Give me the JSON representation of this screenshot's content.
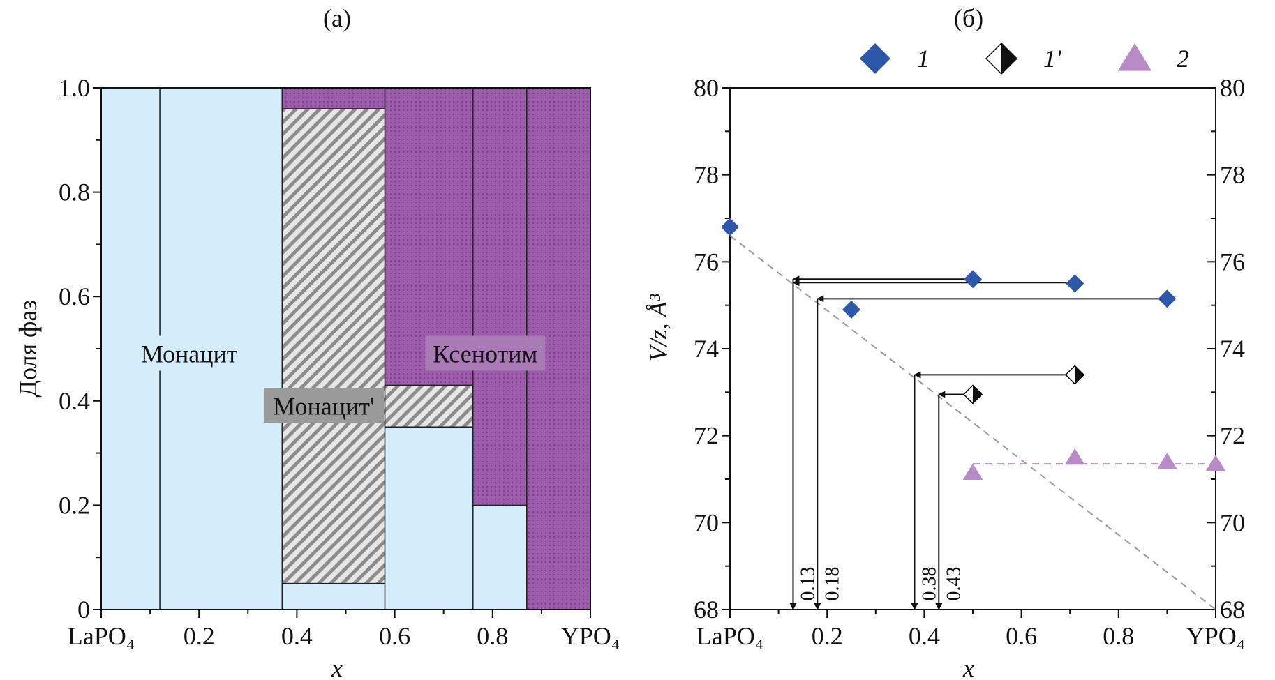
{
  "colors": {
    "monazite": "#d5ecfb",
    "monazite_prime_hatch": "#8c8c8c",
    "xenotime": "#9c5dab",
    "xenotime_label_bg": "#a97ab5",
    "monazite_prime_label_bg": "#9a9a9a",
    "series1": "#2d57a8",
    "series2": "#b98bc6",
    "dashed": "#9a9a9a"
  },
  "chart_data": [
    {
      "panel": "(a)",
      "type": "bar",
      "stacked": true,
      "xlabel": "x",
      "ylabel": "Доля фаз",
      "xlim": [
        0,
        1
      ],
      "ylim": [
        0,
        1
      ],
      "xticks": [
        {
          "value": 0,
          "label": "LaPO₄"
        },
        {
          "value": 0.2,
          "label": "0.2"
        },
        {
          "value": 0.4,
          "label": "0.4"
        },
        {
          "value": 0.6,
          "label": "0.6"
        },
        {
          "value": 0.8,
          "label": "0.8"
        },
        {
          "value": 1,
          "label": "YPO₄"
        }
      ],
      "yticks": [
        {
          "value": 0,
          "label": "0"
        },
        {
          "value": 0.2,
          "label": "0.2"
        },
        {
          "value": 0.4,
          "label": "0.4"
        },
        {
          "value": 0.6,
          "label": "0.6"
        },
        {
          "value": 0.8,
          "label": "0.8"
        },
        {
          "value": 1,
          "label": "1.0"
        }
      ],
      "columns": [
        {
          "x": [
            0,
            0.12
          ],
          "segments": [
            {
              "phase": "monazite",
              "from": 0,
              "to": 1
            }
          ]
        },
        {
          "x": [
            0.12,
            0.37
          ],
          "segments": [
            {
              "phase": "monazite",
              "from": 0,
              "to": 1
            }
          ]
        },
        {
          "x": [
            0.37,
            0.58
          ],
          "segments": [
            {
              "phase": "monazite",
              "from": 0,
              "to": 0.05
            },
            {
              "phase": "monazite_prime",
              "from": 0.05,
              "to": 0.96
            },
            {
              "phase": "xenotime",
              "from": 0.96,
              "to": 1
            }
          ]
        },
        {
          "x": [
            0.58,
            0.76
          ],
          "segments": [
            {
              "phase": "monazite",
              "from": 0,
              "to": 0.35
            },
            {
              "phase": "monazite_prime",
              "from": 0.35,
              "to": 0.43
            },
            {
              "phase": "xenotime",
              "from": 0.43,
              "to": 1
            }
          ]
        },
        {
          "x": [
            0.76,
            0.87
          ],
          "segments": [
            {
              "phase": "monazite",
              "from": 0,
              "to": 0.2
            },
            {
              "phase": "xenotime",
              "from": 0.2,
              "to": 1
            }
          ]
        },
        {
          "x": [
            0.87,
            1
          ],
          "segments": [
            {
              "phase": "xenotime",
              "from": 0,
              "to": 1
            }
          ]
        }
      ],
      "labels": [
        {
          "phase": "monazite",
          "text": "Монацит",
          "x": 0.18,
          "y": 0.49
        },
        {
          "phase": "monazite_prime",
          "text": "Монацит'",
          "x": 0.455,
          "y": 0.39
        },
        {
          "phase": "xenotime",
          "text": "Ксенотим",
          "x": 0.785,
          "y": 0.49
        }
      ]
    },
    {
      "panel": "(б)",
      "type": "scatter",
      "xlabel": "x",
      "ylabel": "V/z, Å³",
      "xlim": [
        0,
        1
      ],
      "ylim": [
        68,
        80
      ],
      "xticks": [
        {
          "value": 0,
          "label": "LaPO₄"
        },
        {
          "value": 0.2,
          "label": "0.2"
        },
        {
          "value": 0.4,
          "label": "0.4"
        },
        {
          "value": 0.6,
          "label": "0.6"
        },
        {
          "value": 0.8,
          "label": "0.8"
        },
        {
          "value": 1,
          "label": "YPO₄"
        }
      ],
      "yticks": [
        68,
        70,
        72,
        74,
        76,
        78,
        80
      ],
      "legend_position": "top",
      "series": [
        {
          "name": "1",
          "marker": "diamond",
          "x": [
            0.0,
            0.25,
            0.5,
            0.71,
            0.9
          ],
          "y": [
            76.8,
            74.9,
            75.6,
            75.5,
            75.15
          ]
        },
        {
          "name": "1'",
          "marker": "half-diamond",
          "x": [
            0.71,
            0.5
          ],
          "y": [
            73.4,
            72.95
          ]
        },
        {
          "name": "2",
          "marker": "triangle",
          "x": [
            0.5,
            0.71,
            0.9,
            1.0
          ],
          "y": [
            71.15,
            71.5,
            71.4,
            71.35
          ]
        }
      ],
      "dashed_lines": [
        {
          "x": [
            0,
            1
          ],
          "y": [
            76.6,
            68
          ]
        },
        {
          "x": [
            0.5,
            1
          ],
          "y": [
            71.35,
            71.35
          ]
        }
      ],
      "arrows": [
        {
          "from_x": 0.5,
          "y": 75.6,
          "to_x": 0.13,
          "label": "0.13"
        },
        {
          "from_x": 0.71,
          "y": 75.52,
          "to_x": 0.13,
          "label": ""
        },
        {
          "from_x": 0.9,
          "y": 75.15,
          "to_x": 0.18,
          "label": "0.18"
        },
        {
          "from_x": 0.71,
          "y": 73.4,
          "to_x": 0.38,
          "label": "0.38"
        },
        {
          "from_x": 0.5,
          "y": 72.95,
          "to_x": 0.43,
          "label": "0.43"
        }
      ]
    }
  ]
}
